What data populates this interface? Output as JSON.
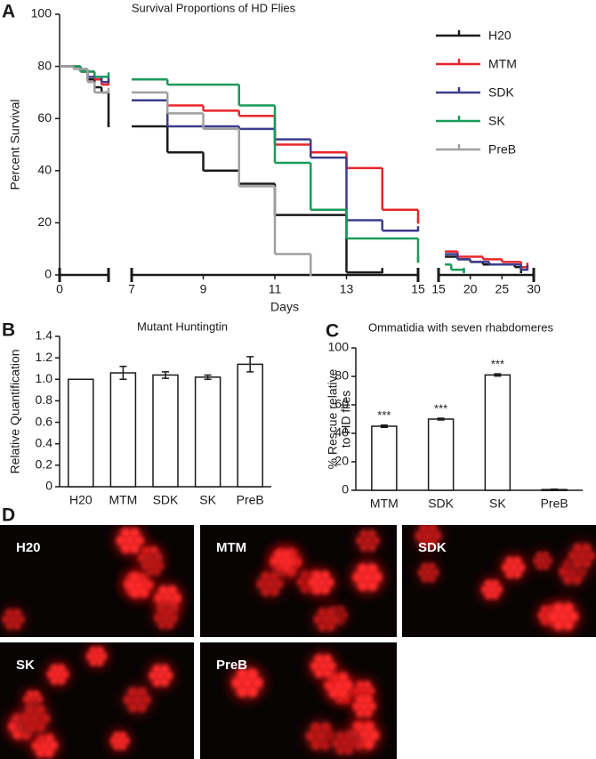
{
  "chart_data": [
    {
      "type": "step",
      "panel_label": "A",
      "title": "Survival Proportions of HD Flies",
      "x_label": "Days",
      "y_label": "Percent Survival",
      "xlim_segments": [
        [
          0,
          7
        ],
        [
          7,
          15
        ],
        [
          15,
          30
        ]
      ],
      "xticks": [
        [
          0
        ],
        [
          7,
          9,
          11,
          13,
          15
        ],
        [
          15,
          20,
          25,
          30
        ]
      ],
      "ylim": [
        0,
        100
      ],
      "yticks": [
        0,
        20,
        40,
        60,
        80,
        100
      ],
      "legend": "upper right",
      "series": [
        {
          "name": "H20",
          "color": "#1a1a1a",
          "x": [
            0,
            3,
            4,
            5,
            6,
            7,
            null,
            7,
            8,
            9,
            10,
            11,
            13,
            14,
            null,
            16,
            18,
            20,
            22,
            27,
            28
          ],
          "values": [
            80,
            78,
            75,
            72,
            70,
            57,
            null,
            57,
            47,
            40,
            35,
            23,
            1,
            1,
            null,
            7,
            6,
            5,
            4,
            3,
            1
          ]
        },
        {
          "name": "MTM",
          "color": "#e8262a",
          "x": [
            0,
            3,
            5,
            6,
            7,
            null,
            7,
            8,
            9,
            10,
            11,
            12,
            13,
            14,
            15,
            null,
            16,
            18,
            22,
            25,
            28,
            29
          ],
          "values": [
            80,
            78,
            75,
            73,
            73,
            null,
            67,
            65,
            63,
            61,
            50,
            47,
            41,
            25,
            20,
            null,
            9,
            7,
            6,
            5,
            3,
            3
          ]
        },
        {
          "name": "SDK",
          "color": "#3c3c8c",
          "x": [
            0,
            3,
            4,
            6,
            7,
            null,
            7,
            8,
            10,
            11,
            12,
            13,
            14,
            15,
            null,
            16,
            18,
            20,
            23,
            28,
            29
          ],
          "values": [
            80,
            79,
            76,
            74,
            74,
            null,
            67,
            57,
            56,
            52,
            45,
            21,
            17,
            17,
            null,
            8,
            6,
            5,
            4,
            2,
            2
          ]
        },
        {
          "name": "SK",
          "color": "#1a9a5a",
          "x": [
            0,
            3,
            5,
            7,
            null,
            7,
            8,
            10,
            11,
            12,
            13,
            15,
            null,
            16,
            17,
            19
          ],
          "values": [
            80,
            78,
            76,
            76,
            null,
            75,
            73,
            65,
            43,
            25,
            14,
            5,
            null,
            4,
            2,
            1
          ]
        },
        {
          "name": "PreB",
          "color": "#a0a0a0",
          "x": [
            0,
            2,
            4,
            5,
            7,
            null,
            7,
            8,
            9,
            10,
            11,
            12
          ],
          "values": [
            80,
            79,
            74,
            70,
            70,
            null,
            70,
            62,
            56,
            34,
            8,
            0
          ]
        }
      ]
    },
    {
      "type": "bar",
      "panel_label": "B",
      "title": "Mutant Huntingtin",
      "y_label": "Relative Quantification",
      "categories": [
        "H20",
        "MTM",
        "SDK",
        "SK",
        "PreB"
      ],
      "values": [
        1,
        1.06,
        1.04,
        1.02,
        1.14
      ],
      "errors": [
        0,
        0.06,
        0.03,
        0.02,
        0.07
      ],
      "ylim": [
        0,
        1.4
      ],
      "yticks": [
        0,
        0.2,
        0.4,
        0.6,
        0.8,
        {
          "value": 1,
          "label": "1.0"
        },
        1.2,
        1.4
      ],
      "color": "#ffffff"
    },
    {
      "type": "bar",
      "panel_label": "C",
      "title": "Ommatidia with seven rhabdomeres",
      "y_label": [
        "% Rescue relative",
        "to HD flies"
      ],
      "categories": [
        "MTM",
        "SDK",
        "SK",
        "PreB"
      ],
      "values": [
        45,
        50,
        81,
        0.5
      ],
      "errors": [
        0.8,
        0.6,
        0.8,
        0.3
      ],
      "annotations": [
        "***",
        "***",
        "***",
        null
      ],
      "ylim": [
        0,
        100
      ],
      "yticks": [
        0,
        20,
        40,
        60,
        80,
        100
      ],
      "color": "#ffffff"
    }
  ],
  "images": {
    "panel_label": "D",
    "panels": [
      "H20",
      "MTM",
      "SDK",
      "SK",
      "PreB"
    ]
  }
}
